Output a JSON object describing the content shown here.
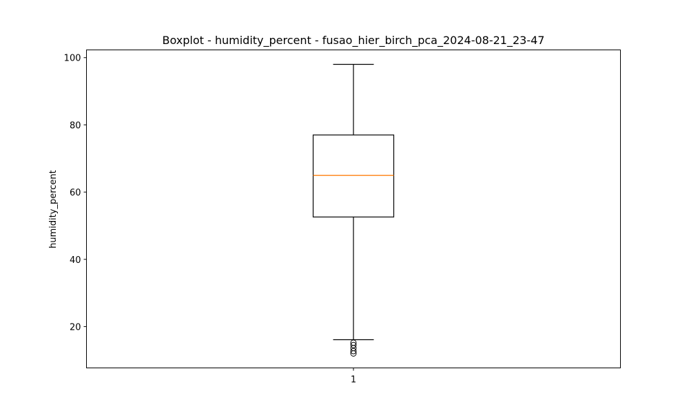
{
  "chart_data": {
    "type": "box",
    "title": "Boxplot - humidity_percent - fusao_hier_birch_pca_2024-08-21_23-47",
    "xlabel": "",
    "ylabel": "humidity_percent",
    "categories": [
      "1"
    ],
    "ylim": [
      7.7,
      102.3
    ],
    "yticks": [
      20,
      40,
      60,
      80,
      100
    ],
    "grid": false,
    "boxes": [
      {
        "category": "1",
        "whisker_low": 16.1,
        "q1": 52.6,
        "median": 65.0,
        "q3": 77.0,
        "whisker_high": 98.0,
        "outliers": [
          15.2,
          14.5,
          13.6,
          12.7,
          12.0
        ]
      }
    ],
    "colors": {
      "box": "#000000",
      "median": "#ff7f0e"
    }
  }
}
